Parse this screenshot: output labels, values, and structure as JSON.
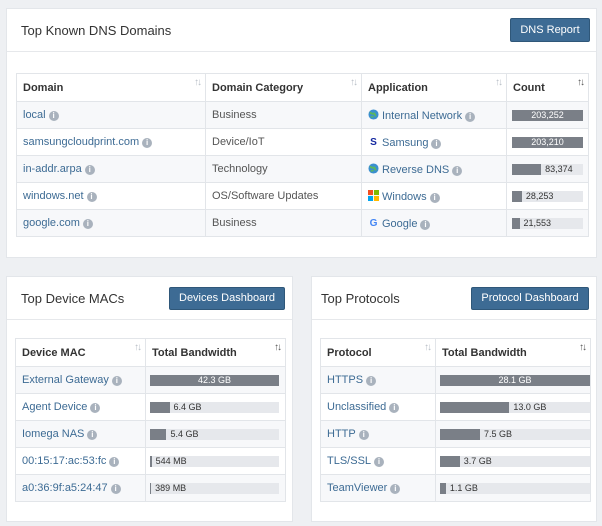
{
  "dns": {
    "title": "Top Known DNS Domains",
    "button": "DNS Report",
    "columns": [
      "Domain",
      "Domain Category",
      "Application",
      "Count"
    ],
    "rows": [
      {
        "domain": "local",
        "category": "Business",
        "app": "Internal Network",
        "app_icon": "globe-icon",
        "count": "203,252",
        "count_value": 203252
      },
      {
        "domain": "samsungcloudprint.com",
        "category": "Device/IoT",
        "app": "Samsung",
        "app_icon": "samsung-icon",
        "count": "203,210",
        "count_value": 203210
      },
      {
        "domain": "in-addr.arpa",
        "category": "Technology",
        "app": "Reverse DNS",
        "app_icon": "globe-icon",
        "count": "83,374",
        "count_value": 83374
      },
      {
        "domain": "windows.net",
        "category": "OS/Software Updates",
        "app": "Windows",
        "app_icon": "windows-icon",
        "count": "28,253",
        "count_value": 28253
      },
      {
        "domain": "google.com",
        "category": "Business",
        "app": "Google",
        "app_icon": "google-icon",
        "count": "21,553",
        "count_value": 21553
      }
    ],
    "max": 203252
  },
  "macs": {
    "title": "Top Device MACs",
    "button": "Devices Dashboard",
    "columns": [
      "Device MAC",
      "Total Bandwidth"
    ],
    "rows": [
      {
        "name": "External Gateway",
        "info": true,
        "bandwidth": "42.3 GB",
        "value": 42.3
      },
      {
        "name": "Agent Device",
        "info": true,
        "bandwidth": "6.4 GB",
        "value": 6.4
      },
      {
        "name": "Iomega NAS",
        "info": true,
        "bandwidth": "5.4 GB",
        "value": 5.4
      },
      {
        "name": "00:15:17:ac:53:fc",
        "info": true,
        "bandwidth": "544 MB",
        "value": 0.544
      },
      {
        "name": "a0:36:9f:a5:24:47",
        "info": true,
        "bandwidth": "389 MB",
        "value": 0.389
      }
    ],
    "max": 42.3
  },
  "protocols": {
    "title": "Top Protocols",
    "button": "Protocol Dashboard",
    "columns": [
      "Protocol",
      "Total Bandwidth"
    ],
    "rows": [
      {
        "name": "HTTPS",
        "bandwidth": "28.1 GB",
        "value": 28.1
      },
      {
        "name": "Unclassified",
        "bandwidth": "13.0 GB",
        "value": 13.0
      },
      {
        "name": "HTTP",
        "bandwidth": "7.5 GB",
        "value": 7.5
      },
      {
        "name": "TLS/SSL",
        "bandwidth": "3.7 GB",
        "value": 3.7
      },
      {
        "name": "TeamViewer",
        "bandwidth": "1.1 GB",
        "value": 1.1
      }
    ],
    "max": 28.1
  },
  "colors": {
    "button": "#3d6b94",
    "bar": "#7a7f87",
    "track": "#e6e8ec",
    "link": "#3d6b94"
  }
}
